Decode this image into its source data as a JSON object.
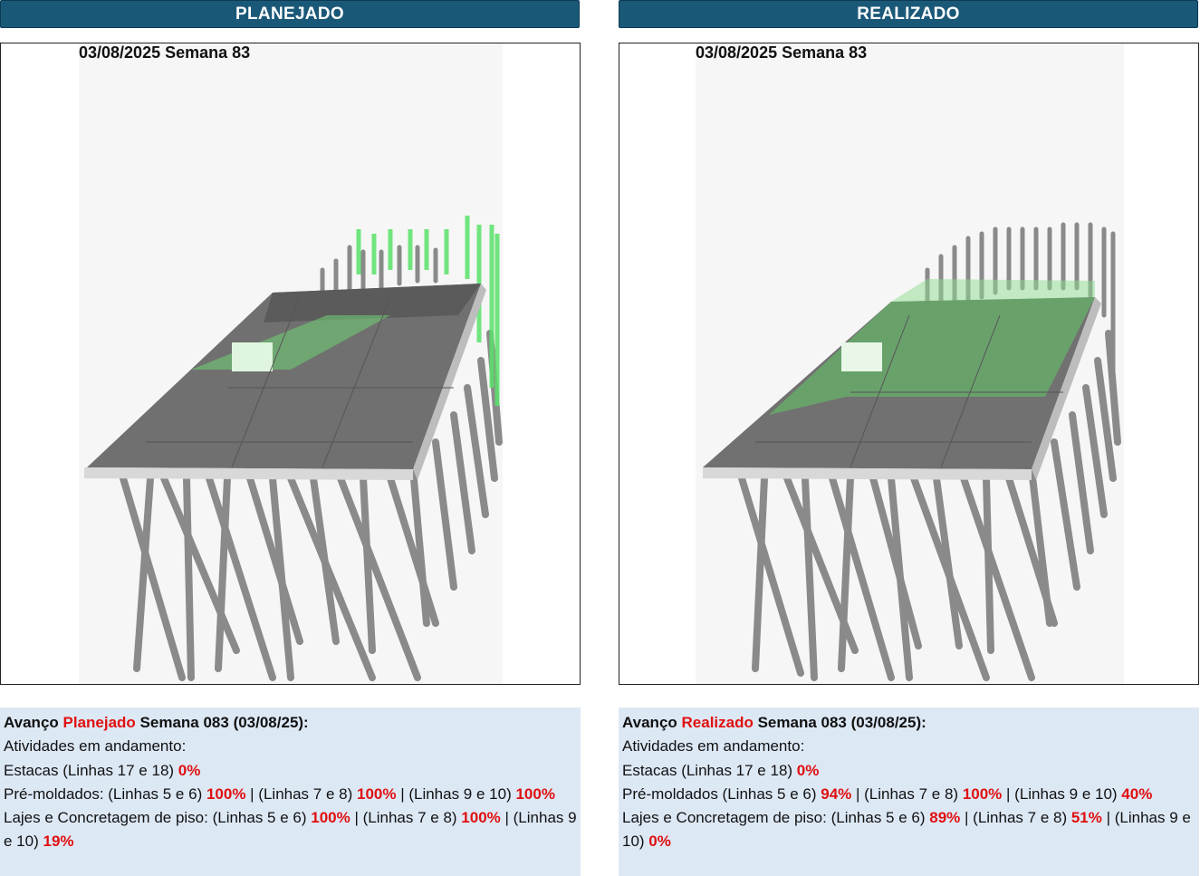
{
  "panels": {
    "planned": {
      "header": "PLANEJADO",
      "date_label": "03/08/2025 Semana 83",
      "notes": {
        "title_prefix": "Avanço ",
        "title_highlight": "Planejado",
        "title_suffix": " Semana 083 (03/08/25):",
        "activities_label": "Atividades em andamento:",
        "line1_text": "Estacas (Linhas 17 e 18) ",
        "line1_v1": "0%",
        "line2_a": "Pré-moldados: (Linhas 5 e 6) ",
        "line2_v1": "100%",
        "line2_b": " | (Linhas 7 e 8) ",
        "line2_v2": "100%",
        "line2_c": " | (Linhas 9 e 10) ",
        "line2_v3": "100%",
        "line3_a": "Lajes e Concretagem de piso: (Linhas 5 e 6) ",
        "line3_v1": "100%",
        "line3_b": " | (Linhas 7 e 8) ",
        "line3_v2": "100%",
        "line3_c": " | (Linhas 9 e 10) ",
        "line3_v3": "19%"
      }
    },
    "actual": {
      "header": "REALIZADO",
      "date_label": "03/08/2025 Semana 83",
      "notes": {
        "title_prefix": "Avanço ",
        "title_highlight": "Realizado",
        "title_suffix": " Semana 083 (03/08/25):",
        "activities_label": "Atividades em andamento:",
        "line1_text": "Estacas (Linhas 17 e 18) ",
        "line1_v1": "0%",
        "line2_a": "Pré-moldados (Linhas 5 e 6) ",
        "line2_v1": "94%",
        "line2_b": " | (Linhas 7 e 8) ",
        "line2_v2": "100%",
        "line2_c": " | (Linhas 9 e 10) ",
        "line2_v3": "40%",
        "line3_a": "Lajes e Concretagem de piso: (Linhas 5 e 6) ",
        "line3_v1": "89%",
        "line3_b": " | (Linhas 7 e 8) ",
        "line3_v2": "51%",
        "line3_c": " | (Linhas 9 e 10) ",
        "line3_v3": "0%"
      }
    }
  },
  "colors": {
    "header_bg": "#1a5878",
    "notes_bg": "#dde8f5",
    "highlight": "#e01010",
    "structure_gray": "#6e6e6e",
    "planned_green": "#59e36a"
  }
}
